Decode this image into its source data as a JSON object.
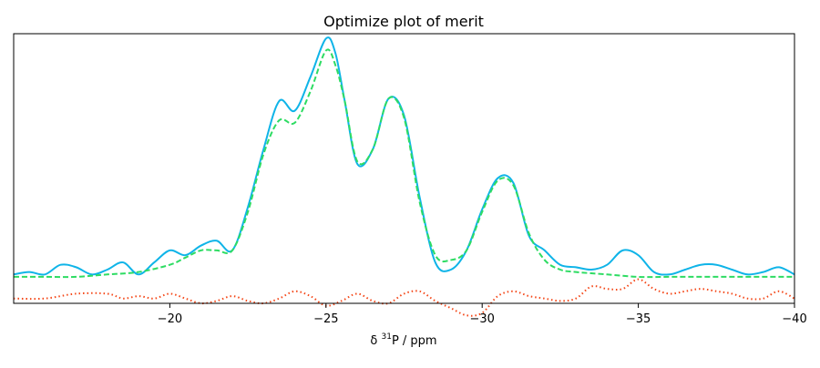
{
  "chart_data": {
    "type": "line",
    "title": "Optimize plot of merit",
    "xlabel": {
      "prefix": "δ ",
      "superscript": "31",
      "suffix": "P / ppm"
    },
    "ylabel": "",
    "xlim": [
      -15,
      -40
    ],
    "ylim": [
      -0.12,
      1.0
    ],
    "x_reversed": true,
    "yticks_visible": false,
    "grid": false,
    "legend": "none",
    "x_ticks": [
      {
        "value": -20,
        "label": "−20"
      },
      {
        "value": -25,
        "label": "−25"
      },
      {
        "value": -30,
        "label": "−30"
      },
      {
        "value": -35,
        "label": "−35"
      },
      {
        "value": -40,
        "label": "−40"
      }
    ],
    "series": [
      {
        "color": "#0fb4e8",
        "style": "solid",
        "x": [
          -15.0,
          -15.5,
          -16.0,
          -16.5,
          -17.0,
          -17.5,
          -18.0,
          -18.5,
          -19.0,
          -19.5,
          -20.0,
          -20.5,
          -21.0,
          -21.5,
          -22.0,
          -22.5,
          -23.0,
          -23.5,
          -24.0,
          -24.5,
          -25.0,
          -25.3,
          -25.6,
          -26.0,
          -26.5,
          -27.0,
          -27.5,
          -28.0,
          -28.5,
          -29.0,
          -29.5,
          -30.0,
          -30.5,
          -31.0,
          -31.5,
          -32.0,
          -32.5,
          -33.0,
          -33.5,
          -34.0,
          -34.5,
          -35.0,
          -35.5,
          -36.0,
          -36.5,
          -37.0,
          -37.5,
          -38.0,
          -38.5,
          -39.0,
          -39.5,
          -40.0
        ],
        "y": [
          0.0,
          0.01,
          0.0,
          0.04,
          0.03,
          0.0,
          0.02,
          0.05,
          0.0,
          0.05,
          0.1,
          0.08,
          0.12,
          0.14,
          0.1,
          0.28,
          0.52,
          0.72,
          0.68,
          0.82,
          0.98,
          0.92,
          0.72,
          0.46,
          0.52,
          0.73,
          0.66,
          0.32,
          0.05,
          0.02,
          0.1,
          0.27,
          0.4,
          0.38,
          0.16,
          0.1,
          0.04,
          0.03,
          0.02,
          0.04,
          0.1,
          0.08,
          0.01,
          0.0,
          0.02,
          0.04,
          0.04,
          0.02,
          0.0,
          0.01,
          0.03,
          0.0
        ]
      },
      {
        "color": "#2edc63",
        "style": "dashed",
        "x": [
          -15.0,
          -16.0,
          -17.0,
          -18.0,
          -19.0,
          -20.0,
          -20.5,
          -21.0,
          -21.5,
          -22.0,
          -22.5,
          -23.0,
          -23.5,
          -24.0,
          -24.5,
          -25.0,
          -25.3,
          -25.6,
          -26.0,
          -26.5,
          -27.0,
          -27.5,
          -28.0,
          -28.5,
          -29.0,
          -29.5,
          -30.0,
          -30.5,
          -31.0,
          -31.5,
          -32.0,
          -32.5,
          -33.0,
          -34.0,
          -35.0,
          -36.0,
          -37.0,
          -38.0,
          -39.0,
          -40.0
        ],
        "y": [
          -0.01,
          -0.01,
          -0.01,
          0.0,
          0.01,
          0.04,
          0.07,
          0.1,
          0.1,
          0.1,
          0.26,
          0.5,
          0.64,
          0.63,
          0.76,
          0.93,
          0.87,
          0.72,
          0.47,
          0.52,
          0.73,
          0.65,
          0.3,
          0.08,
          0.06,
          0.1,
          0.26,
          0.39,
          0.37,
          0.17,
          0.06,
          0.02,
          0.01,
          0.0,
          -0.01,
          -0.01,
          -0.01,
          -0.01,
          -0.01,
          -0.01
        ]
      },
      {
        "color": "#f44718",
        "style": "dotted",
        "x": [
          -15.0,
          -16.0,
          -17.0,
          -18.0,
          -18.5,
          -19.0,
          -19.5,
          -20.0,
          -20.5,
          -21.0,
          -21.5,
          -22.0,
          -22.5,
          -23.0,
          -23.5,
          -24.0,
          -24.5,
          -25.0,
          -25.5,
          -26.0,
          -26.5,
          -27.0,
          -27.5,
          -28.0,
          -28.5,
          -29.0,
          -29.5,
          -30.0,
          -30.5,
          -31.0,
          -31.5,
          -32.0,
          -32.5,
          -33.0,
          -33.5,
          -34.0,
          -34.5,
          -35.0,
          -35.5,
          -36.0,
          -36.5,
          -37.0,
          -37.5,
          -38.0,
          -38.5,
          -39.0,
          -39.5,
          -40.0
        ],
        "y": [
          -0.1,
          -0.1,
          -0.08,
          -0.08,
          -0.1,
          -0.09,
          -0.1,
          -0.08,
          -0.1,
          -0.12,
          -0.11,
          -0.09,
          -0.11,
          -0.12,
          -0.1,
          -0.07,
          -0.09,
          -0.13,
          -0.11,
          -0.08,
          -0.11,
          -0.12,
          -0.08,
          -0.07,
          -0.11,
          -0.14,
          -0.17,
          -0.16,
          -0.09,
          -0.07,
          -0.09,
          -0.1,
          -0.11,
          -0.1,
          -0.05,
          -0.06,
          -0.06,
          -0.02,
          -0.06,
          -0.08,
          -0.07,
          -0.06,
          -0.07,
          -0.08,
          -0.1,
          -0.1,
          -0.07,
          -0.1
        ]
      }
    ]
  }
}
